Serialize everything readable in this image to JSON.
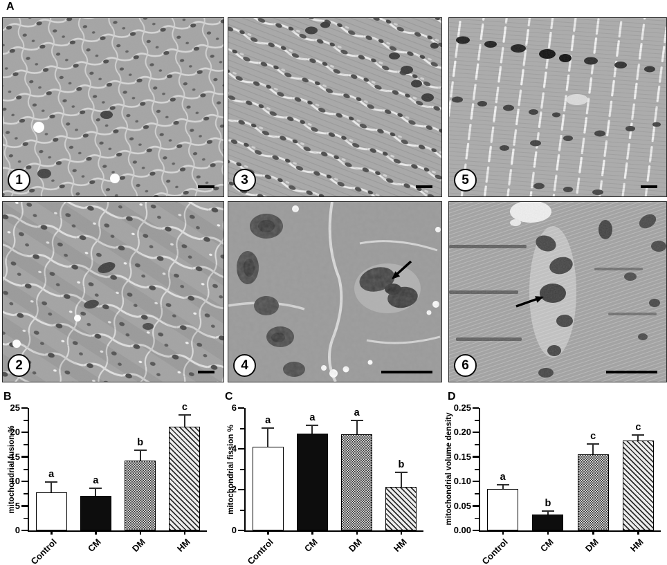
{
  "figure_a": {
    "label": "A",
    "panels": [
      {
        "number": "1",
        "scalebar": "short",
        "arrow": false
      },
      {
        "number": "3",
        "scalebar": "short",
        "arrow": false
      },
      {
        "number": "5",
        "scalebar": "short",
        "arrow": false
      },
      {
        "number": "2",
        "scalebar": "short",
        "arrow": false
      },
      {
        "number": "4",
        "scalebar": "long",
        "arrow": true
      },
      {
        "number": "6",
        "scalebar": "long",
        "arrow": true
      }
    ]
  },
  "chart_data": [
    {
      "type": "bar",
      "panel_label": "B",
      "ylabel": "mitochondrial fusion %",
      "ylim": [
        0,
        25
      ],
      "yticks": [
        "0",
        "5",
        "10",
        "15",
        "20",
        "25"
      ],
      "categories": [
        "Control",
        "CM",
        "DM",
        "HM"
      ],
      "values": [
        7.7,
        7.0,
        14.2,
        21.2
      ],
      "errors": [
        2.0,
        1.5,
        2.0,
        2.3
      ],
      "sig_letters": [
        "a",
        "a",
        "b",
        "c"
      ],
      "fills": [
        "white",
        "black",
        "check",
        "diag"
      ],
      "legend": "none",
      "grid": false
    },
    {
      "type": "bar",
      "panel_label": "C",
      "ylabel": "mitochondrial fission %",
      "ylim": [
        0,
        6
      ],
      "yticks": [
        "0",
        "2",
        "4",
        "6"
      ],
      "categories": [
        "Control",
        "CM",
        "DM",
        "HM"
      ],
      "values": [
        4.1,
        4.75,
        4.7,
        2.15
      ],
      "errors": [
        0.9,
        0.38,
        0.65,
        0.68
      ],
      "sig_letters": [
        "a",
        "a",
        "a",
        "b"
      ],
      "fills": [
        "white",
        "black",
        "check",
        "diag"
      ],
      "legend": "none",
      "grid": false
    },
    {
      "type": "bar",
      "panel_label": "D",
      "ylabel": "mitochondrial volume density",
      "ylim": [
        0,
        0.25
      ],
      "yticks": [
        "0.00",
        "0.05",
        "0.10",
        "0.15",
        "0.20",
        "0.25"
      ],
      "categories": [
        "Control",
        "CM",
        "DM",
        "HM"
      ],
      "values": [
        0.085,
        0.032,
        0.156,
        0.183
      ],
      "errors": [
        0.007,
        0.006,
        0.019,
        0.011
      ],
      "sig_letters": [
        "a",
        "b",
        "c",
        "c"
      ],
      "fills": [
        "white",
        "black",
        "check",
        "diag"
      ],
      "legend": "none",
      "grid": false
    }
  ]
}
